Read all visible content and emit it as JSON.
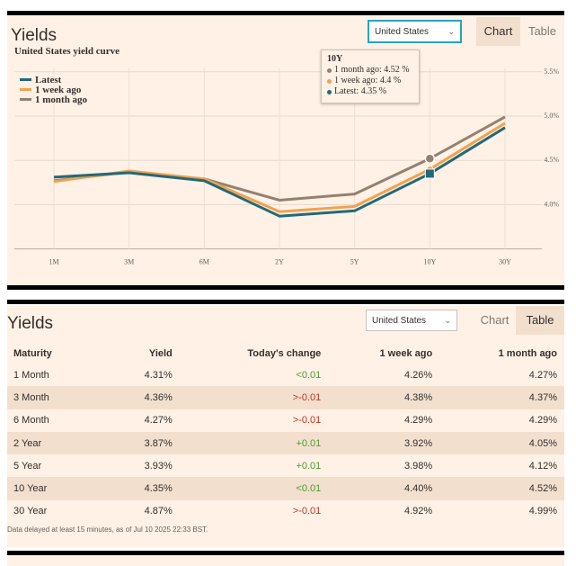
{
  "chart_widget": {
    "title": "Yields",
    "country": "United States",
    "tabs": {
      "chart": "Chart",
      "table": "Table",
      "active": "chart"
    }
  },
  "chart_data": {
    "type": "line",
    "title": "United States yield curve",
    "categories": [
      "1M",
      "3M",
      "6M",
      "2Y",
      "5Y",
      "10Y",
      "30Y"
    ],
    "y_ticks": [
      "5.5%",
      "5.0%",
      "4.5%",
      "4.0%"
    ],
    "y_tick_values": [
      5.5,
      5.0,
      4.5,
      4.0
    ],
    "ylim": [
      3.5,
      5.5
    ],
    "grid": true,
    "legend_position": "top-left",
    "series": [
      {
        "name": "Latest",
        "color": "#216a79",
        "values": [
          4.31,
          4.36,
          4.27,
          3.87,
          3.93,
          4.35,
          4.87
        ]
      },
      {
        "name": "1 week ago",
        "color": "#f2a24f",
        "values": [
          4.26,
          4.38,
          4.29,
          3.92,
          3.98,
          4.4,
          4.92
        ]
      },
      {
        "name": "1 month ago",
        "color": "#958070",
        "values": [
          4.27,
          4.37,
          4.29,
          4.05,
          4.12,
          4.52,
          4.99
        ]
      }
    ],
    "tooltip": {
      "title": "10Y",
      "rows": [
        "1 month ago: 4.52 %",
        "1 week ago: 4.4 %",
        "Latest: 4.35 %"
      ]
    }
  },
  "table_widget": {
    "title": "Yields",
    "country": "United States",
    "tabs": {
      "chart": "Chart",
      "table": "Table",
      "active": "table"
    },
    "columns": [
      "Maturity",
      "Yield",
      "Today's change",
      "1 week ago",
      "1 month ago"
    ],
    "rows": [
      {
        "maturity": "1 Month",
        "yield": "4.31%",
        "change": "<0.01",
        "change_dir": "pos",
        "week": "4.26%",
        "month": "4.27%"
      },
      {
        "maturity": "3 Month",
        "yield": "4.36%",
        "change": ">-0.01",
        "change_dir": "neg",
        "week": "4.38%",
        "month": "4.37%"
      },
      {
        "maturity": "6 Month",
        "yield": "4.27%",
        "change": ">-0.01",
        "change_dir": "neg",
        "week": "4.29%",
        "month": "4.29%"
      },
      {
        "maturity": "2 Year",
        "yield": "3.87%",
        "change": "+0.01",
        "change_dir": "pos",
        "week": "3.92%",
        "month": "4.05%"
      },
      {
        "maturity": "5 Year",
        "yield": "3.93%",
        "change": "+0.01",
        "change_dir": "pos",
        "week": "3.98%",
        "month": "4.12%"
      },
      {
        "maturity": "10 Year",
        "yield": "4.35%",
        "change": "<0.01",
        "change_dir": "pos",
        "week": "4.40%",
        "month": "4.52%"
      },
      {
        "maturity": "30 Year",
        "yield": "4.87%",
        "change": ">-0.01",
        "change_dir": "neg",
        "week": "4.92%",
        "month": "4.99%"
      }
    ],
    "footnote": "Data delayed at least 15 minutes, as of Jul 10 2025 22:33 BST."
  }
}
